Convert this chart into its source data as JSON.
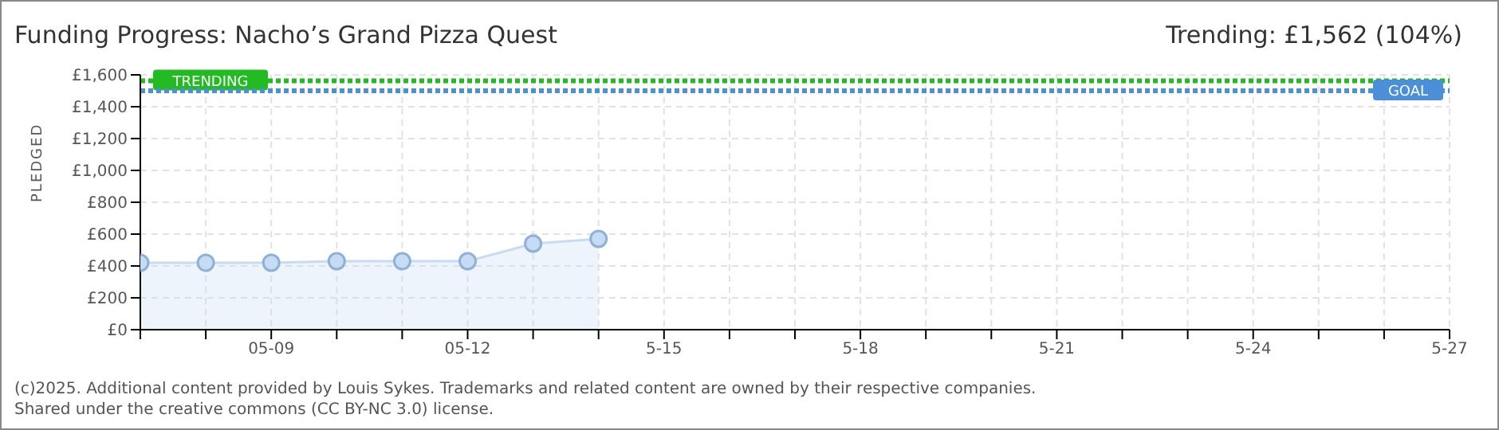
{
  "chart_data": {
    "type": "area",
    "title": "Funding Progress: Nacho’s Grand Pizza Quest",
    "ylabel": "PLEDGED",
    "categories": [
      null,
      null,
      "05-09",
      null,
      null,
      "05-12",
      null,
      null,
      "5-15",
      null,
      null,
      "5-18",
      null,
      null,
      "5-21",
      null,
      null,
      "5-24",
      null,
      null,
      "5-27"
    ],
    "series": [
      {
        "color": "#c6dcf4",
        "values": [
          420,
          420,
          420,
          430,
          430,
          430,
          540,
          570,
          null,
          null,
          null,
          null,
          null,
          null,
          null,
          null,
          null,
          null,
          null,
          null,
          null
        ]
      }
    ],
    "ylim": [
      0,
      1600
    ],
    "yticks": [
      {
        "value": 0,
        "label": "£0"
      },
      {
        "value": 200,
        "label": "£200"
      },
      {
        "value": 400,
        "label": "£400"
      },
      {
        "value": 600,
        "label": "£600"
      },
      {
        "value": 800,
        "label": "£800"
      },
      {
        "value": 1000,
        "label": "£1,000"
      },
      {
        "value": 1200,
        "label": "£1,200"
      },
      {
        "value": 1400,
        "label": "£1,400"
      },
      {
        "value": 1600,
        "label": "£1,600"
      }
    ],
    "grid": true,
    "marker": "circle",
    "legend": false,
    "ref_lines": [
      {
        "axis": "y",
        "value": 1562,
        "label": "TRENDING",
        "color": "#22bb22",
        "line_style": "dotted"
      },
      {
        "axis": "y",
        "value": 1500,
        "label": "GOAL",
        "color": "#4a8fd8",
        "line_style": "dotted"
      }
    ],
    "annotations": [
      "Trending: £1,562 (104%)",
      "(c)2025. Additional content provided by Louis Sykes. Trademarks and related content are owned by their respective companies.",
      "Shared under the creative commons (CC BY-NC 3.0) license."
    ]
  }
}
